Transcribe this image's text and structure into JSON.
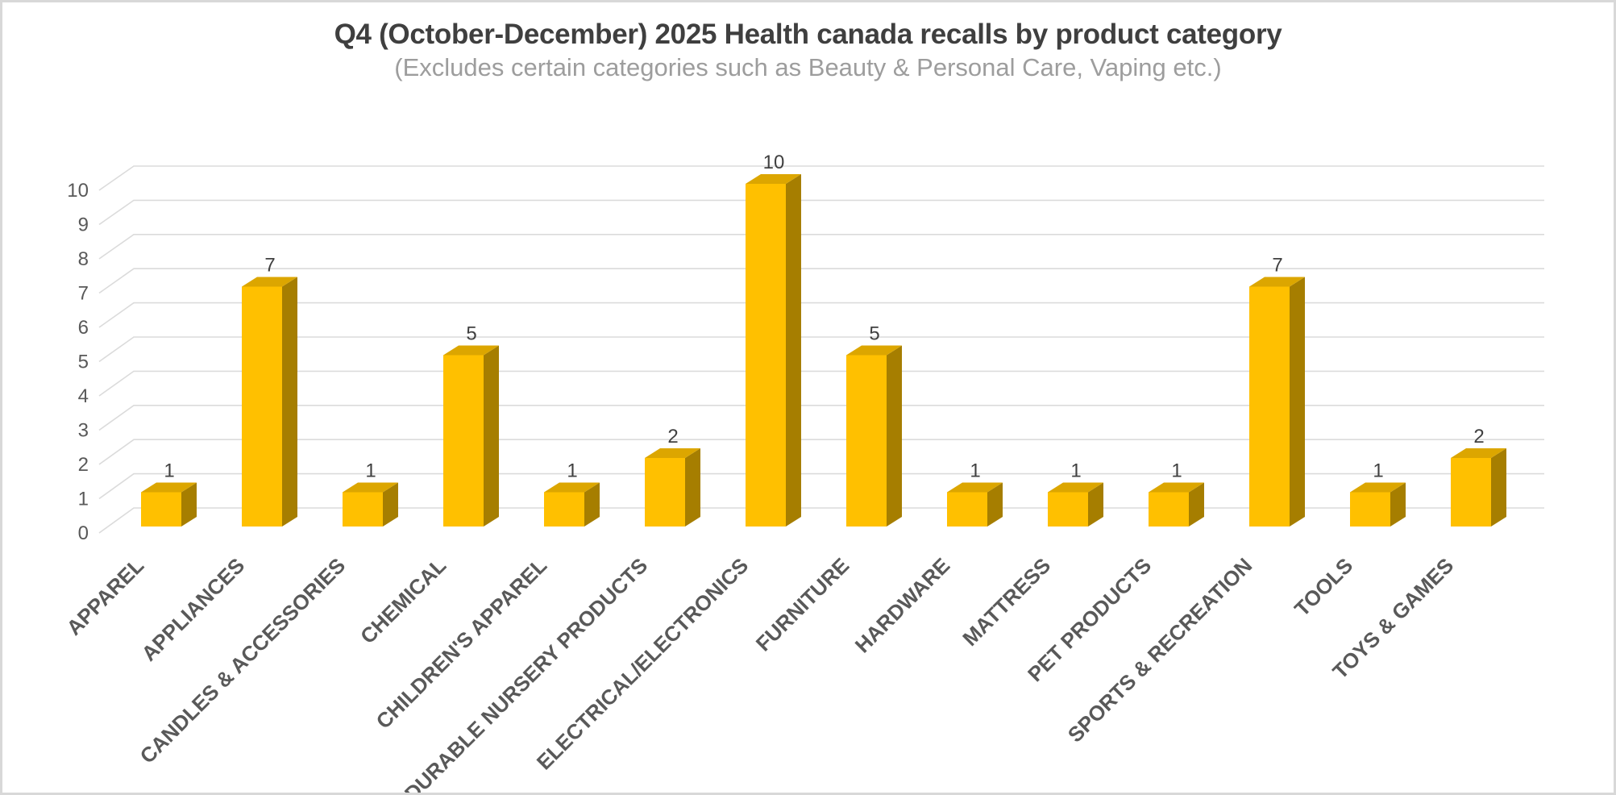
{
  "chart_data": {
    "type": "bar",
    "style": "3d-clustered-column",
    "title": "Q4 (October-December) 2025 Health canada recalls by product category",
    "subtitle": "(Excludes certain categories such as Beauty & Personal Care, Vaping etc.)",
    "categories": [
      "APPAREL",
      "APPLIANCES",
      "CANDLES & ACCESSORIES",
      "CHEMICAL",
      "CHILDREN'S APPAREL",
      "DURABLE NURSERY PRODUCTS",
      "ELECTRICAL/ELECTRONICS",
      "FURNITURE",
      "HARDWARE",
      "MATTRESS",
      "PET PRODUCTS",
      "SPORTS & RECREATION",
      "TOOLS",
      "TOYS & GAMES"
    ],
    "values": [
      1,
      7,
      1,
      5,
      1,
      2,
      10,
      5,
      1,
      1,
      1,
      7,
      1,
      2
    ],
    "xlabel": "",
    "ylabel": "",
    "ylim": [
      0,
      10
    ],
    "yticks": [
      0,
      1,
      2,
      3,
      4,
      5,
      6,
      7,
      8,
      9,
      10
    ],
    "grid": true,
    "legend": false,
    "data_labels": true,
    "category_label_rotation_deg": 45,
    "colors": {
      "bar_front": "#FFC000",
      "bar_top": "#DCA600",
      "bar_side": "#A67E00",
      "gridline": "#dbdbdb",
      "axis_text": "#595959",
      "category_text": "#595959",
      "data_label_text": "#404040",
      "title_text": "#3f3f3f",
      "subtitle_text": "#9d9d9d",
      "canvas_border": "#d8d8d8",
      "background": "#ffffff"
    }
  }
}
